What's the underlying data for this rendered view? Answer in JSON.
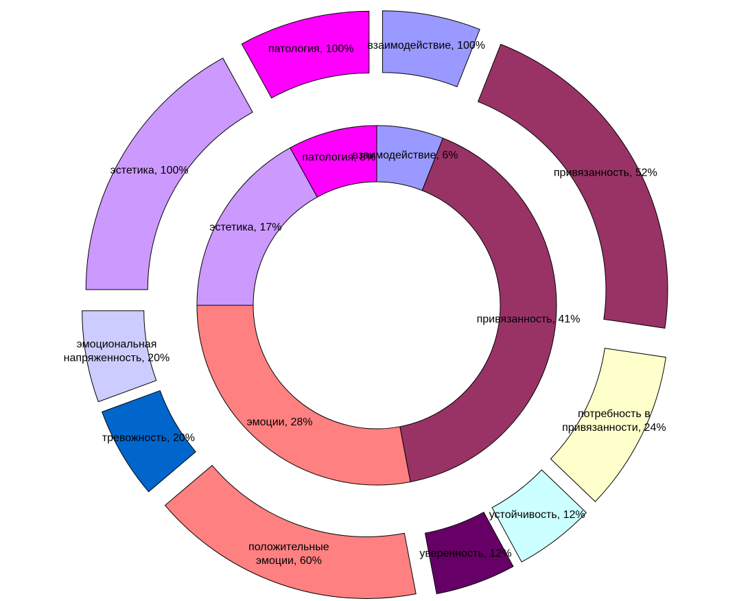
{
  "chart_data": {
    "type": "donut",
    "categories": [
      {
        "label": [
          "взаимодействие, 6%"
        ],
        "value": 6,
        "color": "#9999ff",
        "children": [
          {
            "label": [
              "взаимодействие, 100%"
            ],
            "value": 100,
            "color": "#9999ff"
          }
        ]
      },
      {
        "label": [
          "привязанность, 41%"
        ],
        "value": 41,
        "color": "#993366",
        "children": [
          {
            "label": [
              "привязанность, 52%"
            ],
            "value": 52,
            "color": "#993366"
          },
          {
            "label": [
              "потребность в",
              "привязанности, 24%"
            ],
            "value": 24,
            "color": "#ffffcc"
          },
          {
            "label": [
              "устойчивость, 12%"
            ],
            "value": 12,
            "color": "#ccffff"
          },
          {
            "label": [
              "уверенность, 12%"
            ],
            "value": 12,
            "color": "#660066"
          }
        ]
      },
      {
        "label": [
          "эмоции, 28%"
        ],
        "value": 28,
        "color": "#ff8080",
        "children": [
          {
            "label": [
              "положительные",
              "эмоции, 60%"
            ],
            "value": 60,
            "color": "#ff8080"
          },
          {
            "label": [
              "тревожность, 20%"
            ],
            "value": 20,
            "color": "#0066cc"
          },
          {
            "label": [
              "эмоциональная",
              "напряженность, 20%"
            ],
            "value": 20,
            "color": "#ccccff"
          }
        ]
      },
      {
        "label": [
          "эстетика, 17%"
        ],
        "value": 17,
        "color": "#cc99ff",
        "children": [
          {
            "label": [
              "эстетика, 100%"
            ],
            "value": 100,
            "color": "#cc99ff"
          }
        ]
      },
      {
        "label": [
          "патология, 8%"
        ],
        "value": 8,
        "color": "#ff00ff",
        "children": [
          {
            "label": [
              "патология, 100%"
            ],
            "value": 100,
            "color": "#ff00ff"
          }
        ]
      }
    ]
  }
}
